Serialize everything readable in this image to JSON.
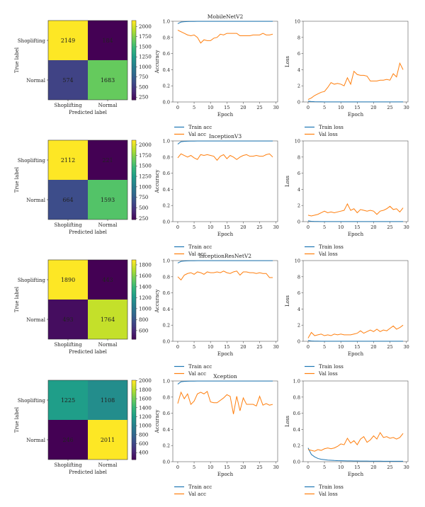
{
  "chart_data": [
    {
      "type": "heatmap",
      "xlabel": "Predicted label",
      "ylabel": "True label",
      "x_categories": [
        "Shoplifting",
        "Normal"
      ],
      "y_categories": [
        "Shoplifting",
        "Normal"
      ],
      "values": [
        [
          2149,
          184
        ],
        [
          574,
          1683
        ]
      ],
      "colorbar": {
        "ticks": [
          250,
          500,
          750,
          1000,
          1250,
          1500,
          1750,
          2000
        ],
        "range": [
          184,
          2149
        ]
      }
    },
    {
      "type": "line",
      "title": "MobileNetV2",
      "xlabel": "Epoch",
      "ylabel": "Accuracy",
      "xlim": [
        -1.5,
        30.5
      ],
      "ylim": [
        0,
        1.0
      ],
      "xticks": [
        0,
        5,
        10,
        15,
        20,
        25,
        30
      ],
      "yticks": [
        0.0,
        0.2,
        0.4,
        0.6,
        0.8,
        1.0
      ],
      "x": [
        0,
        1,
        2,
        3,
        4,
        5,
        6,
        7,
        8,
        9,
        10,
        11,
        12,
        13,
        14,
        15,
        16,
        17,
        18,
        19,
        20,
        21,
        22,
        23,
        24,
        25,
        26,
        27,
        28,
        29
      ],
      "series": [
        {
          "name": "Train acc",
          "color": "#1f77b4",
          "values": [
            0.97,
            0.99,
            0.995,
            0.997,
            0.998,
            0.998,
            0.999,
            0.999,
            0.999,
            0.999,
            0.999,
            0.999,
            0.999,
            0.999,
            0.999,
            0.999,
            0.999,
            0.999,
            0.999,
            0.999,
            0.999,
            0.999,
            0.999,
            0.999,
            0.999,
            0.999,
            0.999,
            0.999,
            0.999,
            0.999
          ]
        },
        {
          "name": "Val acc",
          "color": "#ff7f0e",
          "values": [
            0.89,
            0.87,
            0.85,
            0.83,
            0.82,
            0.83,
            0.8,
            0.73,
            0.77,
            0.76,
            0.76,
            0.79,
            0.8,
            0.84,
            0.83,
            0.85,
            0.85,
            0.85,
            0.85,
            0.82,
            0.82,
            0.82,
            0.82,
            0.83,
            0.83,
            0.83,
            0.85,
            0.83,
            0.83,
            0.84
          ]
        }
      ]
    },
    {
      "type": "line",
      "xlabel": "Epoch",
      "ylabel": "Loss",
      "xlim": [
        -1.5,
        30.5
      ],
      "ylim": [
        0,
        10
      ],
      "xticks": [
        0,
        5,
        10,
        15,
        20,
        25,
        30
      ],
      "yticks": [
        0,
        2,
        4,
        6,
        8,
        10
      ],
      "x": [
        0,
        1,
        2,
        3,
        4,
        5,
        6,
        7,
        8,
        9,
        10,
        11,
        12,
        13,
        14,
        15,
        16,
        17,
        18,
        19,
        20,
        21,
        22,
        23,
        24,
        25,
        26,
        27,
        28,
        29
      ],
      "series": [
        {
          "name": "Train loss",
          "color": "#1f77b4",
          "values": [
            0.1,
            0.05,
            0.03,
            0.02,
            0.02,
            0.01,
            0.01,
            0.01,
            0.01,
            0.01,
            0.01,
            0.01,
            0.01,
            0.01,
            0.01,
            0.01,
            0.01,
            0.01,
            0.01,
            0.01,
            0.01,
            0.01,
            0.01,
            0.01,
            0.01,
            0.01,
            0.01,
            0.01,
            0.01,
            0.01
          ]
        },
        {
          "name": "Val loss",
          "color": "#ff7f0e",
          "values": [
            0.3,
            0.5,
            0.8,
            1.0,
            1.2,
            1.3,
            1.8,
            2.4,
            2.2,
            2.3,
            2.2,
            2.0,
            3.0,
            2.2,
            3.8,
            3.4,
            3.3,
            3.3,
            3.2,
            2.6,
            2.6,
            2.6,
            2.7,
            2.7,
            2.8,
            2.7,
            3.5,
            3.1,
            4.8,
            4.0
          ]
        }
      ]
    },
    {
      "type": "heatmap",
      "xlabel": "Predicted label",
      "ylabel": "True label",
      "x_categories": [
        "Shoplifting",
        "Normal"
      ],
      "y_categories": [
        "Shoplifting",
        "Normal"
      ],
      "values": [
        [
          2112,
          221
        ],
        [
          664,
          1593
        ]
      ],
      "colorbar": {
        "ticks": [
          250,
          500,
          750,
          1000,
          1250,
          1500,
          1750,
          2000
        ],
        "range": [
          221,
          2112
        ]
      }
    },
    {
      "type": "line",
      "title": "InceptionV3",
      "xlabel": "Epoch",
      "ylabel": "Accuracy",
      "xlim": [
        -1.5,
        30.5
      ],
      "ylim": [
        0,
        1.0
      ],
      "xticks": [
        0,
        5,
        10,
        15,
        20,
        25,
        30
      ],
      "yticks": [
        0.0,
        0.2,
        0.4,
        0.6,
        0.8,
        1.0
      ],
      "x": [
        0,
        1,
        2,
        3,
        4,
        5,
        6,
        7,
        8,
        9,
        10,
        11,
        12,
        13,
        14,
        15,
        16,
        17,
        18,
        19,
        20,
        21,
        22,
        23,
        24,
        25,
        26,
        27,
        28,
        29
      ],
      "series": [
        {
          "name": "Train acc",
          "color": "#1f77b4",
          "values": [
            0.96,
            0.99,
            0.995,
            0.997,
            0.998,
            0.998,
            0.999,
            0.999,
            0.999,
            0.999,
            0.999,
            0.999,
            0.999,
            0.999,
            0.999,
            0.999,
            0.999,
            0.999,
            0.999,
            0.999,
            0.999,
            0.999,
            0.999,
            0.999,
            0.999,
            0.999,
            0.999,
            0.999,
            0.999,
            0.999
          ]
        },
        {
          "name": "Val acc",
          "color": "#ff7f0e",
          "values": [
            0.79,
            0.84,
            0.82,
            0.8,
            0.82,
            0.79,
            0.77,
            0.83,
            0.82,
            0.83,
            0.82,
            0.81,
            0.76,
            0.81,
            0.83,
            0.78,
            0.82,
            0.8,
            0.77,
            0.8,
            0.82,
            0.83,
            0.81,
            0.81,
            0.82,
            0.81,
            0.81,
            0.83,
            0.84,
            0.8
          ]
        }
      ]
    },
    {
      "type": "line",
      "xlabel": "Epoch",
      "ylabel": "Loss",
      "xlim": [
        -1.5,
        30.5
      ],
      "ylim": [
        0,
        10
      ],
      "xticks": [
        0,
        5,
        10,
        15,
        20,
        25,
        30
      ],
      "yticks": [
        0,
        2,
        4,
        6,
        8,
        10
      ],
      "x": [
        0,
        1,
        2,
        3,
        4,
        5,
        6,
        7,
        8,
        9,
        10,
        11,
        12,
        13,
        14,
        15,
        16,
        17,
        18,
        19,
        20,
        21,
        22,
        23,
        24,
        25,
        26,
        27,
        28,
        29
      ],
      "series": [
        {
          "name": "Train loss",
          "color": "#1f77b4",
          "values": [
            0.1,
            0.04,
            0.02,
            0.02,
            0.01,
            0.01,
            0.01,
            0.01,
            0.01,
            0.01,
            0.01,
            0.01,
            0.01,
            0.01,
            0.01,
            0.01,
            0.01,
            0.01,
            0.01,
            0.01,
            0.01,
            0.01,
            0.01,
            0.01,
            0.01,
            0.01,
            0.01,
            0.01,
            0.01,
            0.01
          ]
        },
        {
          "name": "Val loss",
          "color": "#ff7f0e",
          "values": [
            0.8,
            0.7,
            0.8,
            0.9,
            1.1,
            1.3,
            1.1,
            1.2,
            1.1,
            1.2,
            1.3,
            1.4,
            2.2,
            1.4,
            1.6,
            1.1,
            1.5,
            1.4,
            1.3,
            1.4,
            1.3,
            0.9,
            1.3,
            1.4,
            1.6,
            1.9,
            1.5,
            1.6,
            1.2,
            1.7
          ]
        }
      ]
    },
    {
      "type": "heatmap",
      "xlabel": "Predicted label",
      "ylabel": "True label",
      "x_categories": [
        "Shoplifting",
        "Normal"
      ],
      "y_categories": [
        "Shoplifting",
        "Normal"
      ],
      "values": [
        [
          1890,
          443
        ],
        [
          493,
          1764
        ]
      ],
      "colorbar": {
        "ticks": [
          600,
          800,
          1000,
          1200,
          1400,
          1600,
          1800
        ],
        "range": [
          443,
          1890
        ]
      }
    },
    {
      "type": "line",
      "title": "InceptionResNetV2",
      "xlabel": "Epoch",
      "ylabel": "Accuracy",
      "xlim": [
        -1.5,
        30.5
      ],
      "ylim": [
        0,
        1.0
      ],
      "xticks": [
        0,
        5,
        10,
        15,
        20,
        25,
        30
      ],
      "yticks": [
        0.0,
        0.2,
        0.4,
        0.6,
        0.8,
        1.0
      ],
      "x": [
        0,
        1,
        2,
        3,
        4,
        5,
        6,
        7,
        8,
        9,
        10,
        11,
        12,
        13,
        14,
        15,
        16,
        17,
        18,
        19,
        20,
        21,
        22,
        23,
        24,
        25,
        26,
        27,
        28,
        29
      ],
      "series": [
        {
          "name": "Train acc",
          "color": "#1f77b4",
          "values": [
            0.97,
            0.99,
            0.995,
            0.997,
            0.998,
            0.998,
            0.999,
            0.999,
            0.999,
            0.999,
            0.999,
            0.999,
            0.999,
            0.999,
            0.999,
            0.999,
            0.999,
            0.999,
            0.999,
            0.999,
            0.999,
            0.999,
            0.999,
            0.999,
            0.999,
            0.999,
            0.999,
            0.999,
            0.999,
            0.999
          ]
        },
        {
          "name": "Val acc",
          "color": "#ff7f0e",
          "values": [
            0.8,
            0.76,
            0.82,
            0.84,
            0.85,
            0.83,
            0.86,
            0.85,
            0.83,
            0.86,
            0.85,
            0.85,
            0.86,
            0.85,
            0.87,
            0.85,
            0.84,
            0.86,
            0.87,
            0.82,
            0.86,
            0.86,
            0.85,
            0.85,
            0.84,
            0.85,
            0.84,
            0.84,
            0.79,
            0.79
          ]
        }
      ]
    },
    {
      "type": "line",
      "xlabel": "Epoch",
      "ylabel": "Loss",
      "xlim": [
        -1.5,
        30.5
      ],
      "ylim": [
        0,
        10
      ],
      "xticks": [
        0,
        5,
        10,
        15,
        20,
        25,
        30
      ],
      "yticks": [
        0,
        2,
        4,
        6,
        8,
        10
      ],
      "x": [
        0,
        1,
        2,
        3,
        4,
        5,
        6,
        7,
        8,
        9,
        10,
        11,
        12,
        13,
        14,
        15,
        16,
        17,
        18,
        19,
        20,
        21,
        22,
        23,
        24,
        25,
        26,
        27,
        28,
        29
      ],
      "series": [
        {
          "name": "Train loss",
          "color": "#1f77b4",
          "values": [
            0.1,
            0.04,
            0.02,
            0.02,
            0.01,
            0.01,
            0.01,
            0.01,
            0.01,
            0.01,
            0.01,
            0.01,
            0.01,
            0.01,
            0.01,
            0.01,
            0.01,
            0.01,
            0.01,
            0.01,
            0.01,
            0.01,
            0.01,
            0.01,
            0.01,
            0.01,
            0.01,
            0.01,
            0.01,
            0.01
          ]
        },
        {
          "name": "Val loss",
          "color": "#ff7f0e",
          "values": [
            0.4,
            1.1,
            0.7,
            0.8,
            0.9,
            0.7,
            0.8,
            0.7,
            0.9,
            0.8,
            0.9,
            0.8,
            0.8,
            0.8,
            0.9,
            1.0,
            1.3,
            1.0,
            1.2,
            1.4,
            1.2,
            1.5,
            1.2,
            1.4,
            1.3,
            1.6,
            1.9,
            1.5,
            1.7,
            2.0
          ]
        }
      ]
    },
    {
      "type": "heatmap",
      "xlabel": "Predicted label",
      "ylabel": "True label",
      "x_categories": [
        "Shoplifting",
        "Normal"
      ],
      "y_categories": [
        "Shoplifting",
        "Normal"
      ],
      "values": [
        [
          1225,
          1108
        ],
        [
          246,
          2011
        ]
      ],
      "colorbar": {
        "ticks": [
          400,
          600,
          800,
          1000,
          1200,
          1400,
          1600,
          1800,
          2000
        ],
        "range": [
          246,
          2011
        ]
      }
    },
    {
      "type": "line",
      "title": "Xception",
      "xlabel": "Epoch",
      "ylabel": "Accuracy",
      "xlim": [
        -1.5,
        30.5
      ],
      "ylim": [
        0,
        1.0
      ],
      "xticks": [
        0,
        5,
        10,
        15,
        20,
        25,
        30
      ],
      "yticks": [
        0.0,
        0.2,
        0.4,
        0.6,
        0.8,
        1.0
      ],
      "x": [
        0,
        1,
        2,
        3,
        4,
        5,
        6,
        7,
        8,
        9,
        10,
        11,
        12,
        13,
        14,
        15,
        16,
        17,
        18,
        19,
        20,
        21,
        22,
        23,
        24,
        25,
        26,
        27,
        28,
        29
      ],
      "series": [
        {
          "name": "Train acc",
          "color": "#1f77b4",
          "values": [
            0.96,
            0.99,
            0.995,
            0.997,
            0.998,
            0.998,
            0.999,
            0.999,
            0.999,
            0.999,
            0.999,
            0.999,
            0.999,
            0.999,
            0.999,
            0.999,
            0.999,
            0.999,
            0.999,
            0.999,
            0.999,
            0.999,
            0.999,
            0.999,
            0.999,
            0.999,
            0.999,
            0.999,
            0.999,
            0.999
          ]
        },
        {
          "name": "Val acc",
          "color": "#ff7f0e",
          "values": [
            0.72,
            0.86,
            0.78,
            0.84,
            0.71,
            0.75,
            0.84,
            0.86,
            0.84,
            0.87,
            0.74,
            0.73,
            0.73,
            0.76,
            0.79,
            0.83,
            0.81,
            0.59,
            0.81,
            0.63,
            0.79,
            0.71,
            0.71,
            0.71,
            0.69,
            0.81,
            0.7,
            0.72,
            0.7,
            0.71
          ]
        }
      ]
    },
    {
      "type": "line",
      "xlabel": "Epoch",
      "ylabel": "Loss",
      "xlim": [
        -1.5,
        30.5
      ],
      "ylim": [
        0,
        1.0
      ],
      "xticks": [
        0,
        5,
        10,
        15,
        20,
        25,
        30
      ],
      "yticks": [
        0.0,
        0.2,
        0.4,
        0.6,
        0.8,
        1.0
      ],
      "x": [
        0,
        1,
        2,
        3,
        4,
        5,
        6,
        7,
        8,
        9,
        10,
        11,
        12,
        13,
        14,
        15,
        16,
        17,
        18,
        19,
        20,
        21,
        22,
        23,
        24,
        25,
        26,
        27,
        28,
        29
      ],
      "series": [
        {
          "name": "Train loss",
          "color": "#1f77b4",
          "values": [
            0.17,
            0.09,
            0.06,
            0.04,
            0.03,
            0.025,
            0.02,
            0.018,
            0.015,
            0.013,
            0.012,
            0.011,
            0.01,
            0.01,
            0.009,
            0.009,
            0.008,
            0.008,
            0.008,
            0.007,
            0.007,
            0.007,
            0.007,
            0.006,
            0.006,
            0.006,
            0.006,
            0.006,
            0.006,
            0.006
          ]
        },
        {
          "name": "Val loss",
          "color": "#ff7f0e",
          "values": [
            0.15,
            0.14,
            0.13,
            0.15,
            0.14,
            0.16,
            0.17,
            0.16,
            0.17,
            0.19,
            0.22,
            0.21,
            0.29,
            0.23,
            0.26,
            0.21,
            0.28,
            0.31,
            0.24,
            0.27,
            0.32,
            0.28,
            0.36,
            0.3,
            0.31,
            0.29,
            0.3,
            0.28,
            0.3,
            0.35
          ]
        }
      ]
    }
  ]
}
